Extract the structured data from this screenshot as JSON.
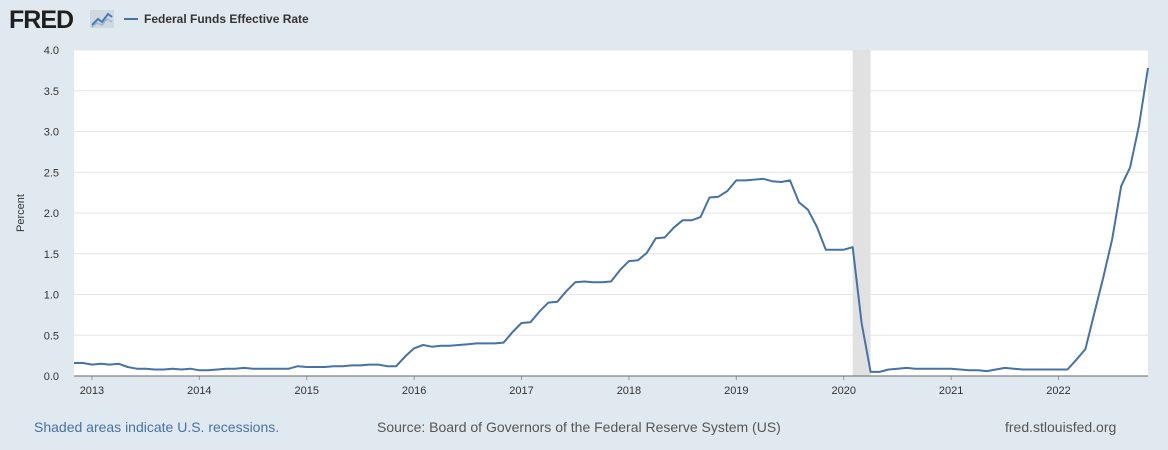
{
  "header": {
    "logo_text": "FRED",
    "legend_label": "Federal Funds Effective Rate"
  },
  "colors": {
    "series": "#4572a7",
    "recession_shade": "#e1e1e1",
    "page_background": "#e1e9f0",
    "plot_background": "#ffffff"
  },
  "icons": {
    "logo_mark": "line-graph-spark-icon"
  },
  "footer": {
    "recession_note": "Shaded areas indicate U.S. recessions.",
    "source": "Source: Board of Governors of the Federal Reserve System (US)",
    "url": "fred.stlouisfed.org"
  },
  "chart_data": {
    "type": "line",
    "title": "",
    "xlabel": "",
    "ylabel": "Percent",
    "xlim": [
      2012.833,
      2022.833
    ],
    "ylim": [
      0,
      4.0
    ],
    "grid": true,
    "legend": "top-left",
    "x_ticks": [
      "2013",
      "2014",
      "2015",
      "2016",
      "2017",
      "2018",
      "2019",
      "2020",
      "2021",
      "2022"
    ],
    "y_ticks": [
      "0.0",
      "0.5",
      "1.0",
      "1.5",
      "2.0",
      "2.5",
      "3.0",
      "3.5",
      "4.0"
    ],
    "recessions": [
      {
        "start": "2020-02",
        "end": "2020-04"
      }
    ],
    "series": [
      {
        "name": "Federal Funds Effective Rate",
        "points": [
          [
            "2012-11",
            0.16
          ],
          [
            "2012-12",
            0.16
          ],
          [
            "2013-01",
            0.14
          ],
          [
            "2013-02",
            0.15
          ],
          [
            "2013-03",
            0.14
          ],
          [
            "2013-04",
            0.15
          ],
          [
            "2013-05",
            0.11
          ],
          [
            "2013-06",
            0.09
          ],
          [
            "2013-07",
            0.09
          ],
          [
            "2013-08",
            0.08
          ],
          [
            "2013-09",
            0.08
          ],
          [
            "2013-10",
            0.09
          ],
          [
            "2013-11",
            0.08
          ],
          [
            "2013-12",
            0.09
          ],
          [
            "2014-01",
            0.07
          ],
          [
            "2014-02",
            0.07
          ],
          [
            "2014-03",
            0.08
          ],
          [
            "2014-04",
            0.09
          ],
          [
            "2014-05",
            0.09
          ],
          [
            "2014-06",
            0.1
          ],
          [
            "2014-07",
            0.09
          ],
          [
            "2014-08",
            0.09
          ],
          [
            "2014-09",
            0.09
          ],
          [
            "2014-10",
            0.09
          ],
          [
            "2014-11",
            0.09
          ],
          [
            "2014-12",
            0.12
          ],
          [
            "2015-01",
            0.11
          ],
          [
            "2015-02",
            0.11
          ],
          [
            "2015-03",
            0.11
          ],
          [
            "2015-04",
            0.12
          ],
          [
            "2015-05",
            0.12
          ],
          [
            "2015-06",
            0.13
          ],
          [
            "2015-07",
            0.13
          ],
          [
            "2015-08",
            0.14
          ],
          [
            "2015-09",
            0.14
          ],
          [
            "2015-10",
            0.12
          ],
          [
            "2015-11",
            0.12
          ],
          [
            "2015-12",
            0.24
          ],
          [
            "2016-01",
            0.34
          ],
          [
            "2016-02",
            0.38
          ],
          [
            "2016-03",
            0.36
          ],
          [
            "2016-04",
            0.37
          ],
          [
            "2016-05",
            0.37
          ],
          [
            "2016-06",
            0.38
          ],
          [
            "2016-07",
            0.39
          ],
          [
            "2016-08",
            0.4
          ],
          [
            "2016-09",
            0.4
          ],
          [
            "2016-10",
            0.4
          ],
          [
            "2016-11",
            0.41
          ],
          [
            "2016-12",
            0.54
          ],
          [
            "2017-01",
            0.65
          ],
          [
            "2017-02",
            0.66
          ],
          [
            "2017-03",
            0.79
          ],
          [
            "2017-04",
            0.9
          ],
          [
            "2017-05",
            0.91
          ],
          [
            "2017-06",
            1.04
          ],
          [
            "2017-07",
            1.15
          ],
          [
            "2017-08",
            1.16
          ],
          [
            "2017-09",
            1.15
          ],
          [
            "2017-10",
            1.15
          ],
          [
            "2017-11",
            1.16
          ],
          [
            "2017-12",
            1.3
          ],
          [
            "2018-01",
            1.41
          ],
          [
            "2018-02",
            1.42
          ],
          [
            "2018-03",
            1.51
          ],
          [
            "2018-04",
            1.69
          ],
          [
            "2018-05",
            1.7
          ],
          [
            "2018-06",
            1.82
          ],
          [
            "2018-07",
            1.91
          ],
          [
            "2018-08",
            1.91
          ],
          [
            "2018-09",
            1.95
          ],
          [
            "2018-10",
            2.19
          ],
          [
            "2018-11",
            2.2
          ],
          [
            "2018-12",
            2.27
          ],
          [
            "2019-01",
            2.4
          ],
          [
            "2019-02",
            2.4
          ],
          [
            "2019-03",
            2.41
          ],
          [
            "2019-04",
            2.42
          ],
          [
            "2019-05",
            2.39
          ],
          [
            "2019-06",
            2.38
          ],
          [
            "2019-07",
            2.4
          ],
          [
            "2019-08",
            2.13
          ],
          [
            "2019-09",
            2.04
          ],
          [
            "2019-10",
            1.83
          ],
          [
            "2019-11",
            1.55
          ],
          [
            "2019-12",
            1.55
          ],
          [
            "2020-01",
            1.55
          ],
          [
            "2020-02",
            1.58
          ],
          [
            "2020-03",
            0.65
          ],
          [
            "2020-04",
            0.05
          ],
          [
            "2020-05",
            0.05
          ],
          [
            "2020-06",
            0.08
          ],
          [
            "2020-07",
            0.09
          ],
          [
            "2020-08",
            0.1
          ],
          [
            "2020-09",
            0.09
          ],
          [
            "2020-10",
            0.09
          ],
          [
            "2020-11",
            0.09
          ],
          [
            "2020-12",
            0.09
          ],
          [
            "2021-01",
            0.09
          ],
          [
            "2021-02",
            0.08
          ],
          [
            "2021-03",
            0.07
          ],
          [
            "2021-04",
            0.07
          ],
          [
            "2021-05",
            0.06
          ],
          [
            "2021-06",
            0.08
          ],
          [
            "2021-07",
            0.1
          ],
          [
            "2021-08",
            0.09
          ],
          [
            "2021-09",
            0.08
          ],
          [
            "2021-10",
            0.08
          ],
          [
            "2021-11",
            0.08
          ],
          [
            "2021-12",
            0.08
          ],
          [
            "2022-01",
            0.08
          ],
          [
            "2022-02",
            0.08
          ],
          [
            "2022-03",
            0.2
          ],
          [
            "2022-04",
            0.33
          ],
          [
            "2022-05",
            0.77
          ],
          [
            "2022-06",
            1.21
          ],
          [
            "2022-07",
            1.68
          ],
          [
            "2022-08",
            2.33
          ],
          [
            "2022-09",
            2.56
          ],
          [
            "2022-10",
            3.08
          ],
          [
            "2022-11",
            3.78
          ]
        ]
      }
    ]
  }
}
